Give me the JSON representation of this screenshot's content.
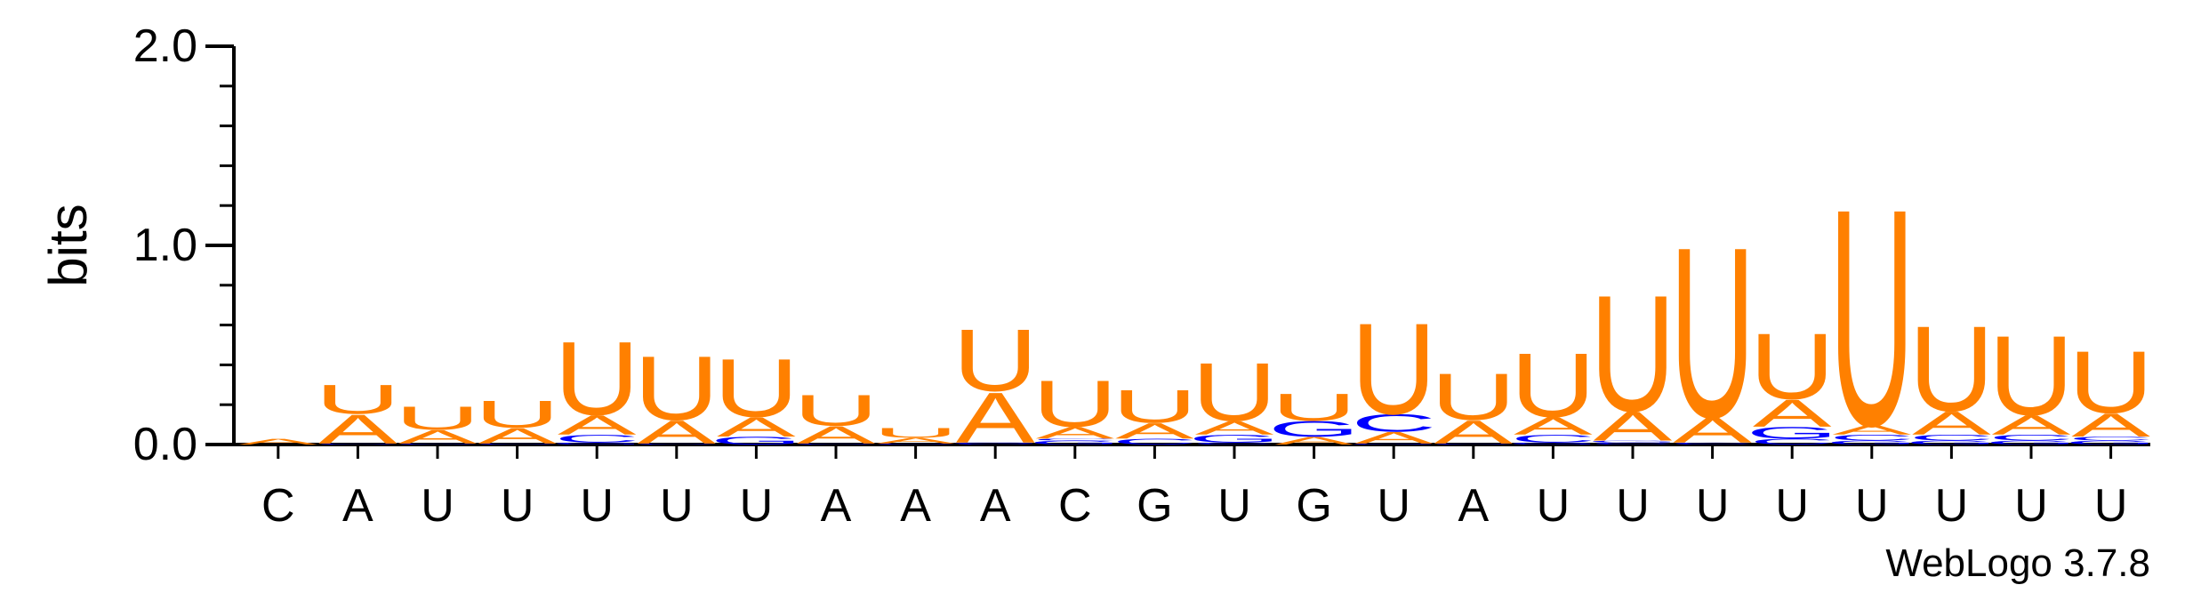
{
  "chart_data": {
    "type": "sequence-logo",
    "title": "",
    "xlabel": "",
    "ylabel": "bits",
    "ylim": [
      0,
      2
    ],
    "yticks": [
      "0.0",
      "1.0",
      "2.0"
    ],
    "credit": "WebLogo 3.7.8",
    "colors": {
      "U": "#FF8000",
      "A": "#FF8000",
      "C": "#0000FF",
      "G": "#0000FF"
    },
    "x": [
      "C",
      "A",
      "U",
      "U",
      "U",
      "U",
      "U",
      "A",
      "A",
      "A",
      "C",
      "G",
      "U",
      "G",
      "U",
      "A",
      "U",
      "U",
      "U",
      "U",
      "U",
      "U",
      "U",
      "U"
    ],
    "stacks": [
      [
        {
          "letter": "A",
          "bits": 0.03
        }
      ],
      [
        {
          "letter": "C",
          "bits": 0.005
        },
        {
          "letter": "A",
          "bits": 0.15
        },
        {
          "letter": "U",
          "bits": 0.15
        }
      ],
      [
        {
          "letter": "C",
          "bits": 0.005
        },
        {
          "letter": "A",
          "bits": 0.07
        },
        {
          "letter": "U",
          "bits": 0.12
        }
      ],
      [
        {
          "letter": "C",
          "bits": 0.005
        },
        {
          "letter": "A",
          "bits": 0.08
        },
        {
          "letter": "U",
          "bits": 0.14
        }
      ],
      [
        {
          "letter": "G",
          "bits": 0.01
        },
        {
          "letter": "C",
          "bits": 0.04
        },
        {
          "letter": "A",
          "bits": 0.1
        },
        {
          "letter": "U",
          "bits": 0.38
        }
      ],
      [
        {
          "letter": "C",
          "bits": 0.005
        },
        {
          "letter": "A",
          "bits": 0.12
        },
        {
          "letter": "U",
          "bits": 0.33
        }
      ],
      [
        {
          "letter": "G",
          "bits": 0.04
        },
        {
          "letter": "A",
          "bits": 0.1
        },
        {
          "letter": "U",
          "bits": 0.3
        }
      ],
      [
        {
          "letter": "C",
          "bits": 0.005
        },
        {
          "letter": "A",
          "bits": 0.09
        },
        {
          "letter": "U",
          "bits": 0.16
        }
      ],
      [
        {
          "letter": "C",
          "bits": 0.005
        },
        {
          "letter": "A",
          "bits": 0.03
        },
        {
          "letter": "U",
          "bits": 0.05
        }
      ],
      [
        {
          "letter": "C",
          "bits": 0.005
        },
        {
          "letter": "G",
          "bits": 0.005
        },
        {
          "letter": "A",
          "bits": 0.26
        },
        {
          "letter": "U",
          "bits": 0.32
        }
      ],
      [
        {
          "letter": "G",
          "bits": 0.02
        },
        {
          "letter": "C",
          "bits": 0.01
        },
        {
          "letter": "A",
          "bits": 0.06
        },
        {
          "letter": "U",
          "bits": 0.24
        }
      ],
      [
        {
          "letter": "C",
          "bits": 0.03
        },
        {
          "letter": "A",
          "bits": 0.08
        },
        {
          "letter": "U",
          "bits": 0.17
        }
      ],
      [
        {
          "letter": "C",
          "bits": 0.01
        },
        {
          "letter": "G",
          "bits": 0.04
        },
        {
          "letter": "A",
          "bits": 0.07
        },
        {
          "letter": "U",
          "bits": 0.3
        }
      ],
      [
        {
          "letter": "A",
          "bits": 0.04
        },
        {
          "letter": "G",
          "bits": 0.08
        },
        {
          "letter": "U",
          "bits": 0.14
        }
      ],
      [
        {
          "letter": "G",
          "bits": 0.005
        },
        {
          "letter": "A",
          "bits": 0.06
        },
        {
          "letter": "C",
          "bits": 0.09
        },
        {
          "letter": "U",
          "bits": 0.47
        }
      ],
      [
        {
          "letter": "C",
          "bits": 0.005
        },
        {
          "letter": "A",
          "bits": 0.12
        },
        {
          "letter": "U",
          "bits": 0.24
        }
      ],
      [
        {
          "letter": "G",
          "bits": 0.01
        },
        {
          "letter": "C",
          "bits": 0.04
        },
        {
          "letter": "A",
          "bits": 0.09
        },
        {
          "letter": "U",
          "bits": 0.33
        }
      ],
      [
        {
          "letter": "C",
          "bits": 0.01
        },
        {
          "letter": "G",
          "bits": 0.01
        },
        {
          "letter": "A",
          "bits": 0.15
        },
        {
          "letter": "U",
          "bits": 0.6
        }
      ],
      [
        {
          "letter": "C",
          "bits": 0.01
        },
        {
          "letter": "A",
          "bits": 0.13
        },
        {
          "letter": "U",
          "bits": 0.88
        }
      ],
      [
        {
          "letter": "C",
          "bits": 0.03
        },
        {
          "letter": "G",
          "bits": 0.06
        },
        {
          "letter": "A",
          "bits": 0.14
        },
        {
          "letter": "U",
          "bits": 0.34
        }
      ],
      [
        {
          "letter": "G",
          "bits": 0.02
        },
        {
          "letter": "C",
          "bits": 0.03
        },
        {
          "letter": "A",
          "bits": 0.05
        },
        {
          "letter": "U",
          "bits": 1.12
        }
      ],
      [
        {
          "letter": "G",
          "bits": 0.02
        },
        {
          "letter": "C",
          "bits": 0.03
        },
        {
          "letter": "A",
          "bits": 0.12
        },
        {
          "letter": "U",
          "bits": 0.44
        }
      ],
      [
        {
          "letter": "G",
          "bits": 0.02
        },
        {
          "letter": "C",
          "bits": 0.03
        },
        {
          "letter": "A",
          "bits": 0.1
        },
        {
          "letter": "U",
          "bits": 0.41
        }
      ],
      [
        {
          "letter": "G",
          "bits": 0.02
        },
        {
          "letter": "C",
          "bits": 0.02
        },
        {
          "letter": "A",
          "bits": 0.12
        },
        {
          "letter": "U",
          "bits": 0.32
        }
      ]
    ]
  }
}
